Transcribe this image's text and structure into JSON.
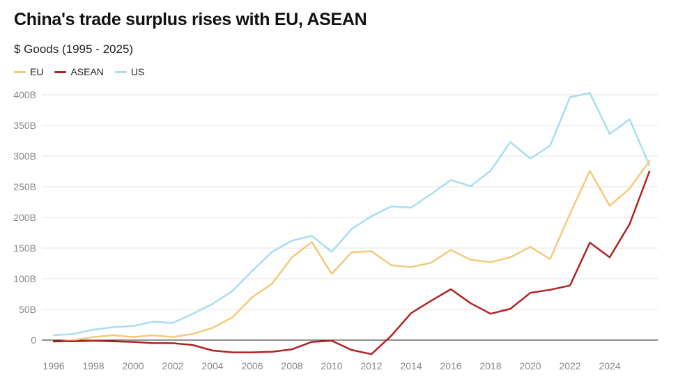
{
  "header": {
    "title": "China's trade surplus rises with EU, ASEAN",
    "subtitle": "$ Goods (1995 - 2025)"
  },
  "chart_data": {
    "type": "line",
    "title": "China's trade surplus rises with EU, ASEAN",
    "subtitle": "$ Goods (1995 - 2025)",
    "xlabel": "",
    "ylabel": "",
    "x": [
      1996,
      1997,
      1998,
      1999,
      2000,
      2001,
      2002,
      2003,
      2004,
      2005,
      2006,
      2007,
      2008,
      2009,
      2010,
      2011,
      2012,
      2013,
      2014,
      2015,
      2016,
      2017,
      2018,
      2019,
      2020,
      2021,
      2022,
      2023,
      2024,
      2025,
      2026
    ],
    "xlim": [
      1996,
      2026
    ],
    "ylim": [
      -25,
      425
    ],
    "y_ticks": [
      0,
      50,
      100,
      150,
      200,
      250,
      300,
      350,
      400
    ],
    "y_tick_labels": [
      "0",
      "50B",
      "100B",
      "150B",
      "200B",
      "250B",
      "300B",
      "350B",
      "400B"
    ],
    "x_ticks": [
      1996,
      1998,
      2000,
      2002,
      2004,
      2006,
      2008,
      2010,
      2012,
      2014,
      2016,
      2018,
      2020,
      2022,
      2024
    ],
    "x_tick_labels": [
      "1996",
      "1998",
      "2000",
      "2002",
      "2004",
      "2006",
      "2008",
      "2010",
      "2012",
      "2014",
      "2016",
      "2018",
      "2020",
      "2022",
      "2024"
    ],
    "grid": true,
    "legend_position": "top-left",
    "series": [
      {
        "name": "EU",
        "color": "#f5c97a",
        "values": [
          -3,
          0,
          5,
          8,
          5,
          8,
          5,
          10,
          20,
          37,
          70,
          92,
          135,
          160,
          108,
          143,
          145,
          122,
          119,
          126,
          147,
          131,
          127,
          135,
          152,
          132,
          206,
          276,
          219,
          247,
          292
        ]
      },
      {
        "name": "ASEAN",
        "color": "#b22222",
        "values": [
          -2,
          -2,
          -1,
          -2,
          -3,
          -5,
          -5,
          -8,
          -17,
          -20,
          -20,
          -19,
          -15,
          -3,
          -1,
          -16,
          -23,
          7,
          44,
          64,
          83,
          60,
          43,
          51,
          77,
          82,
          89,
          159,
          135,
          189,
          275
        ]
      },
      {
        "name": "US",
        "color": "#a8def0",
        "values": [
          8,
          10,
          17,
          21,
          23,
          30,
          28,
          43,
          59,
          80,
          113,
          144,
          162,
          170,
          144,
          181,
          202,
          218,
          216,
          238,
          261,
          251,
          276,
          323,
          296,
          317,
          396,
          403,
          336,
          360,
          285
        ]
      }
    ]
  }
}
